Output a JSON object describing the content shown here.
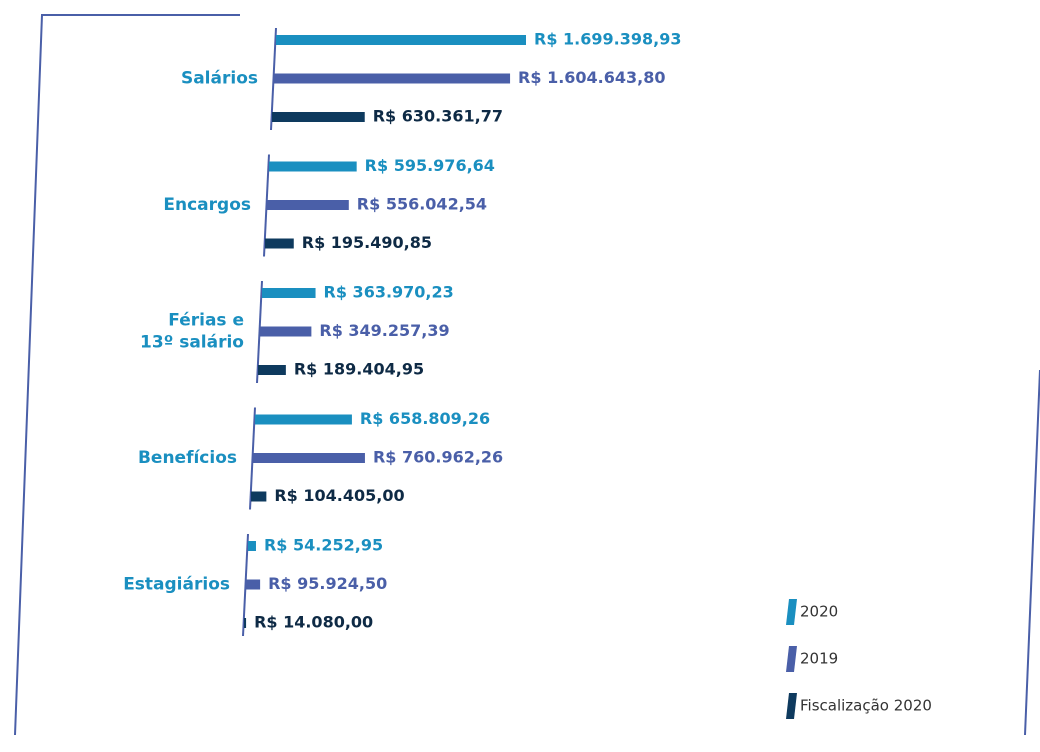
{
  "chart_data": {
    "type": "bar",
    "orientation": "horizontal",
    "categories": [
      [
        "Salários"
      ],
      [
        "Encargos"
      ],
      [
        "Férias e",
        "13º salário"
      ],
      [
        "Benefícios"
      ],
      [
        "Estagiários"
      ]
    ],
    "series": [
      {
        "name": "2020",
        "color": "#1a8fc0",
        "values": [
          1699398.93,
          595976.64,
          363970.23,
          658809.26,
          54252.95
        ],
        "value_labels": [
          "R$ 1.699.398,93",
          "R$ 595.976,64",
          "R$ 363.970,23",
          "R$ 658.809,26",
          "R$ 54.252,95"
        ]
      },
      {
        "name": "2019",
        "color": "#4a5fa8",
        "values": [
          1604643.8,
          556042.54,
          349257.39,
          760962.26,
          95924.5
        ],
        "value_labels": [
          "R$ 1.604.643,80",
          "R$ 556.042,54",
          "R$ 349.257,39",
          "R$ 760.962,26",
          "R$ 95.924,50"
        ]
      },
      {
        "name": "Fiscalização 2020",
        "color": "#0e3a5e",
        "values": [
          630361.77,
          195490.85,
          189404.95,
          104405.0,
          14080.0
        ],
        "value_labels": [
          "R$ 630.361,77",
          "R$ 195.490,85",
          "R$ 189.404,95",
          "R$ 104.405,00",
          "R$ 14.080,00"
        ]
      }
    ],
    "legend": "bottom-right"
  }
}
